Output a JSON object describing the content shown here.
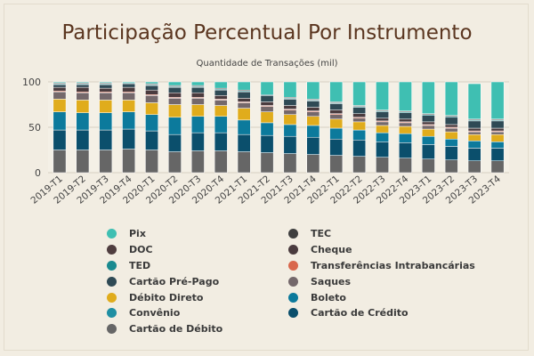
{
  "title": "Participação Percentual Por Instrumento",
  "subtitle": "Quantidade de Transações (mil)",
  "chart_data": {
    "type": "bar",
    "stacked": true,
    "title": "Participação Percentual Por Instrumento",
    "subtitle": "Quantidade de Transações (mil)",
    "ylim": [
      0,
      100
    ],
    "yticks": [
      0,
      50,
      100
    ],
    "grid": true,
    "legend_position": "bottom",
    "categories": [
      "2019-T1",
      "2019-T2",
      "2019-T3",
      "2019-T4",
      "2020-T1",
      "2020-T2",
      "2020-T3",
      "2020-T4",
      "2021-T1",
      "2021-T2",
      "2021-T3",
      "2021-T4",
      "2022-T1",
      "2022-T2",
      "2022-T3",
      "2022-T4",
      "2023-T1",
      "2023-T2",
      "2023-T3",
      "2023-T4"
    ],
    "series": [
      {
        "name": "Cartão de Débito",
        "color": "#666666",
        "values": [
          25,
          25,
          25,
          26,
          25,
          23,
          24,
          24,
          23,
          22,
          21,
          20,
          19,
          18,
          17,
          16,
          15,
          14,
          13,
          13
        ]
      },
      {
        "name": "Cartão de Crédito",
        "color": "#0b4f6c",
        "values": [
          22,
          22,
          22,
          22,
          21,
          19,
          20,
          20,
          19,
          19,
          19,
          19,
          18,
          18,
          17,
          17,
          16,
          15,
          14,
          14
        ]
      },
      {
        "name": "Boleto",
        "color": "#0c7a9c",
        "values": [
          20,
          19,
          19,
          19,
          18,
          19,
          18,
          18,
          16,
          14,
          13,
          13,
          12,
          11,
          10,
          10,
          9,
          8,
          8,
          7
        ]
      },
      {
        "name": "Convênio",
        "color": "#1f8fa3",
        "values": [
          0,
          0,
          0,
          0,
          0,
          0,
          0,
          0,
          0,
          0,
          0,
          0,
          0,
          0,
          0,
          0,
          0,
          0,
          0,
          0
        ]
      },
      {
        "name": "Débito Direto",
        "color": "#e0ac1c",
        "values": [
          14,
          14,
          14,
          13,
          13,
          14,
          13,
          12,
          13,
          12,
          11,
          10,
          10,
          9,
          8,
          8,
          8,
          8,
          7,
          8
        ]
      },
      {
        "name": "Saques",
        "color": "#74686b",
        "values": [
          8,
          8,
          8,
          8,
          8,
          7,
          7,
          6,
          6,
          6,
          5,
          5,
          5,
          4,
          4,
          4,
          4,
          4,
          3,
          3
        ]
      },
      {
        "name": "Transferências Intrabancárias",
        "color": "#d9674c",
        "values": [
          1,
          1,
          1,
          1,
          1,
          1,
          1,
          1,
          1,
          1,
          1,
          1,
          1,
          1,
          1,
          1,
          1,
          1,
          1,
          1
        ]
      },
      {
        "name": "Cheque",
        "color": "#4a3b3e",
        "values": [
          4,
          5,
          4,
          5,
          5,
          5,
          5,
          4,
          4,
          4,
          4,
          4,
          4,
          4,
          3,
          3,
          3,
          3,
          3,
          3
        ]
      },
      {
        "name": "Cartão Pré-Pago",
        "color": "#2f4a55",
        "values": [
          3,
          3,
          4,
          4,
          5,
          6,
          6,
          6,
          7,
          7,
          7,
          7,
          7,
          7,
          7,
          7,
          7,
          8,
          8,
          8
        ]
      },
      {
        "name": "TED",
        "color": "#1a8a8f",
        "values": [
          1,
          1,
          1,
          1,
          1,
          1,
          1,
          1,
          1,
          1,
          1,
          1,
          1,
          1,
          1,
          1,
          1,
          1,
          1,
          1
        ]
      },
      {
        "name": "DOC",
        "color": "#4f3d3f",
        "values": [
          1,
          1,
          1,
          0,
          1,
          1,
          1,
          1,
          1,
          0,
          1,
          1,
          1,
          1,
          1,
          1,
          1,
          1,
          1,
          1
        ]
      },
      {
        "name": "TEC",
        "color": "#3f3f3f",
        "values": [
          0,
          0,
          0,
          0,
          0,
          0,
          0,
          0,
          0,
          0,
          0,
          0,
          0,
          0,
          0,
          0,
          0,
          0,
          0,
          0
        ]
      },
      {
        "name": "Pix",
        "color": "#3fbfb2",
        "values": [
          1,
          1,
          1,
          1,
          2,
          4,
          4,
          7,
          9,
          14,
          17,
          19,
          22,
          26,
          31,
          32,
          35,
          37,
          39,
          41
        ]
      }
    ]
  },
  "legend": [
    {
      "label": "Pix",
      "color": "#3fbfb2"
    },
    {
      "label": "TEC",
      "color": "#3f3f3f"
    },
    {
      "label": "DOC",
      "color": "#4f3d3f"
    },
    {
      "label": "Cheque",
      "color": "#4a3b3e"
    },
    {
      "label": "TED",
      "color": "#1a8a8f"
    },
    {
      "label": "Transferências Intrabancárias",
      "color": "#d9674c"
    },
    {
      "label": "Cartão Pré-Pago",
      "color": "#2f4a55"
    },
    {
      "label": "Saques",
      "color": "#74686b"
    },
    {
      "label": "Débito Direto",
      "color": "#e0ac1c"
    },
    {
      "label": "Boleto",
      "color": "#0c7a9c"
    },
    {
      "label": "Convênio",
      "color": "#1f8fa3"
    },
    {
      "label": "Cartão de Crédito",
      "color": "#0b4f6c"
    },
    {
      "label": "Cartão de Débito",
      "color": "#666666"
    }
  ]
}
